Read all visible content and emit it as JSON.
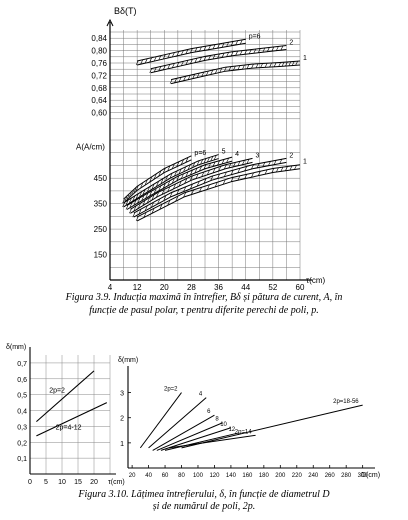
{
  "chart_data": [
    {
      "type": "line",
      "title": "",
      "xlabel": "τ(cm)",
      "ylabel_top": "Bδ(T)",
      "ylabel_bottom": "A(A/cm)",
      "x_ticks": [
        "4",
        "12",
        "20",
        "28",
        "36",
        "44",
        "52",
        "60"
      ],
      "x_range": [
        4,
        60
      ],
      "b_ticks": [
        "0,84",
        "0,80",
        "0,76",
        "0,72",
        "0,68",
        "0,64",
        "0,60"
      ],
      "a_ticks": [
        "450",
        "350",
        "250",
        "150"
      ],
      "a_range": [
        50,
        600
      ],
      "b_range": [
        0.56,
        0.86
      ],
      "grid": true,
      "annotations": [
        "p=6",
        "2",
        "1",
        "p=2",
        "5",
        "4",
        "3",
        "2",
        "1"
      ],
      "b_series": [
        {
          "name": "p=6",
          "x": [
            12,
            20,
            28,
            36,
            44
          ],
          "y": [
            0.76,
            0.78,
            0.8,
            0.815,
            0.83
          ]
        },
        {
          "name": "2",
          "x": [
            16,
            24,
            32,
            40,
            48,
            56
          ],
          "y": [
            0.735,
            0.755,
            0.775,
            0.79,
            0.8,
            0.81
          ]
        },
        {
          "name": "1",
          "x": [
            22,
            30,
            38,
            46,
            54,
            60
          ],
          "y": [
            0.7,
            0.72,
            0.74,
            0.75,
            0.755,
            0.76
          ]
        }
      ],
      "a_series": [
        {
          "name": "p=6",
          "x": [
            8,
            12,
            20,
            28
          ],
          "y": [
            360,
            410,
            480,
            530
          ]
        },
        {
          "name": "5",
          "x": [
            8,
            14,
            22,
            30,
            36
          ],
          "y": [
            345,
            395,
            460,
            510,
            535
          ]
        },
        {
          "name": "4",
          "x": [
            9,
            16,
            24,
            32,
            40
          ],
          "y": [
            335,
            390,
            450,
            495,
            525
          ]
        },
        {
          "name": "3",
          "x": [
            10,
            18,
            28,
            38,
            46
          ],
          "y": [
            320,
            385,
            450,
            495,
            520
          ]
        },
        {
          "name": "2",
          "x": [
            11,
            22,
            34,
            46,
            56
          ],
          "y": [
            305,
            385,
            450,
            495,
            520
          ]
        },
        {
          "name": "1",
          "x": [
            12,
            26,
            40,
            52,
            60
          ],
          "y": [
            290,
            385,
            445,
            480,
            495
          ]
        }
      ]
    },
    {
      "type": "line",
      "title": "",
      "xlabel": "τ(cm)",
      "ylabel": "δ(mm)",
      "x_ticks": [
        "0",
        "5",
        "10",
        "15",
        "20"
      ],
      "y_ticks": [
        "0,7",
        "0,6",
        "0,5",
        "0,4",
        "0,3",
        "0,2",
        "0,1"
      ],
      "x_range": [
        0,
        25
      ],
      "y_range": [
        0,
        0.75
      ],
      "grid": true,
      "series": [
        {
          "name": "2p=2",
          "x": [
            2,
            20
          ],
          "y": [
            0.33,
            0.65
          ]
        },
        {
          "name": "2p=4-12",
          "x": [
            2,
            24
          ],
          "y": [
            0.24,
            0.45
          ]
        }
      ]
    },
    {
      "type": "line",
      "title": "",
      "xlabel": "D(cm)",
      "ylabel": "δ(mm)",
      "x_ticks": [
        "20",
        "40",
        "60",
        "80",
        "100",
        "120",
        "140",
        "160",
        "180",
        "200",
        "220",
        "240",
        "260",
        "280",
        "300"
      ],
      "y_ticks": [
        "3",
        "2",
        "1"
      ],
      "x_range": [
        15,
        315
      ],
      "y_range": [
        0,
        3.5
      ],
      "grid": false,
      "series": [
        {
          "name": "2p=2",
          "x": [
            30,
            80
          ],
          "y": [
            0.8,
            3.0
          ]
        },
        {
          "name": "4",
          "x": [
            40,
            110
          ],
          "y": [
            0.8,
            2.8
          ]
        },
        {
          "name": "6",
          "x": [
            45,
            120
          ],
          "y": [
            0.7,
            2.1
          ]
        },
        {
          "name": "8",
          "x": [
            50,
            130
          ],
          "y": [
            0.7,
            1.8
          ]
        },
        {
          "name": "10",
          "x": [
            55,
            140
          ],
          "y": [
            0.7,
            1.6
          ]
        },
        {
          "name": "12",
          "x": [
            60,
            150
          ],
          "y": [
            0.7,
            1.4
          ]
        },
        {
          "name": "2p=14",
          "x": [
            65,
            170
          ],
          "y": [
            0.8,
            1.3
          ]
        },
        {
          "name": "2p=18-56",
          "x": [
            80,
            300
          ],
          "y": [
            0.8,
            2.5
          ]
        }
      ]
    }
  ],
  "captions": {
    "fig39_line1": "Figura 3.9. Inducția maximă în întrefier, Bδ și pătura de curent, A, în",
    "fig39_line2": "funcție de pasul polar,  τ pentru diferite perechi de poli, p.",
    "fig310_line1": "Figura 3.10. Lățimea întrefierului,  δ, în funcție de diametrul D",
    "fig310_line2": "și de numărul de poli, 2p."
  }
}
